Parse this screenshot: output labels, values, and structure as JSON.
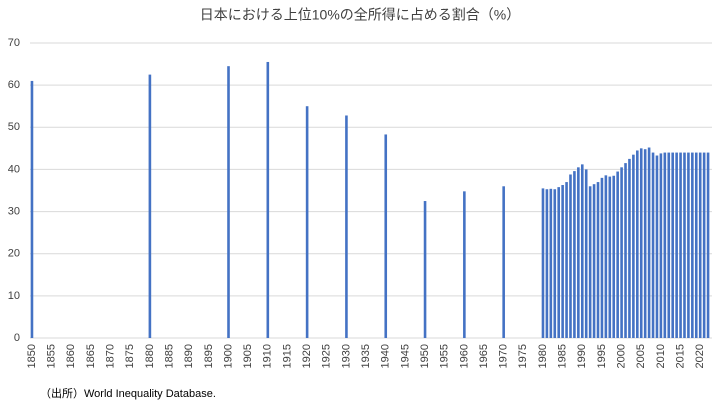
{
  "chart_data": {
    "type": "bar",
    "title": "日本における上位10%の全所得に占める割合（%）",
    "source": "（出所）World Inequality Database.",
    "x": [
      1850,
      1880,
      1900,
      1910,
      1920,
      1930,
      1940,
      1950,
      1960,
      1970,
      1980,
      1981,
      1982,
      1983,
      1984,
      1985,
      1986,
      1987,
      1988,
      1989,
      1990,
      1991,
      1992,
      1993,
      1994,
      1995,
      1996,
      1997,
      1998,
      1999,
      2000,
      2001,
      2002,
      2003,
      2004,
      2005,
      2006,
      2007,
      2008,
      2009,
      2010,
      2011,
      2012,
      2013,
      2014,
      2015,
      2016,
      2017,
      2018,
      2019,
      2020,
      2021,
      2022
    ],
    "values": [
      61,
      62.5,
      64.5,
      65.5,
      55,
      52.8,
      48.3,
      32.5,
      34.8,
      36,
      35.5,
      35.3,
      35.4,
      35.3,
      35.8,
      36.3,
      37,
      38.8,
      39.6,
      40.5,
      41.2,
      40,
      36,
      36.5,
      37,
      38,
      38.6,
      38.3,
      38.5,
      39.5,
      40.5,
      41.5,
      42.5,
      43.5,
      44.5,
      45,
      44.8,
      45.2,
      44,
      43.3,
      43.8,
      44,
      44,
      44,
      44,
      44,
      44,
      44,
      44,
      44,
      44,
      44,
      44
    ],
    "color": "#4472c4",
    "xlim": [
      1849.5,
      2023
    ],
    "xticks": [
      1850,
      1855,
      1860,
      1865,
      1870,
      1875,
      1880,
      1885,
      1890,
      1895,
      1900,
      1905,
      1910,
      1915,
      1920,
      1925,
      1930,
      1935,
      1940,
      1945,
      1950,
      1955,
      1960,
      1965,
      1970,
      1975,
      1980,
      1985,
      1990,
      1995,
      2000,
      2005,
      2010,
      2015,
      2020
    ],
    "ylim": [
      0,
      70
    ],
    "yticks": [
      0,
      10,
      20,
      30,
      40,
      50,
      60,
      70
    ],
    "grid": true
  }
}
